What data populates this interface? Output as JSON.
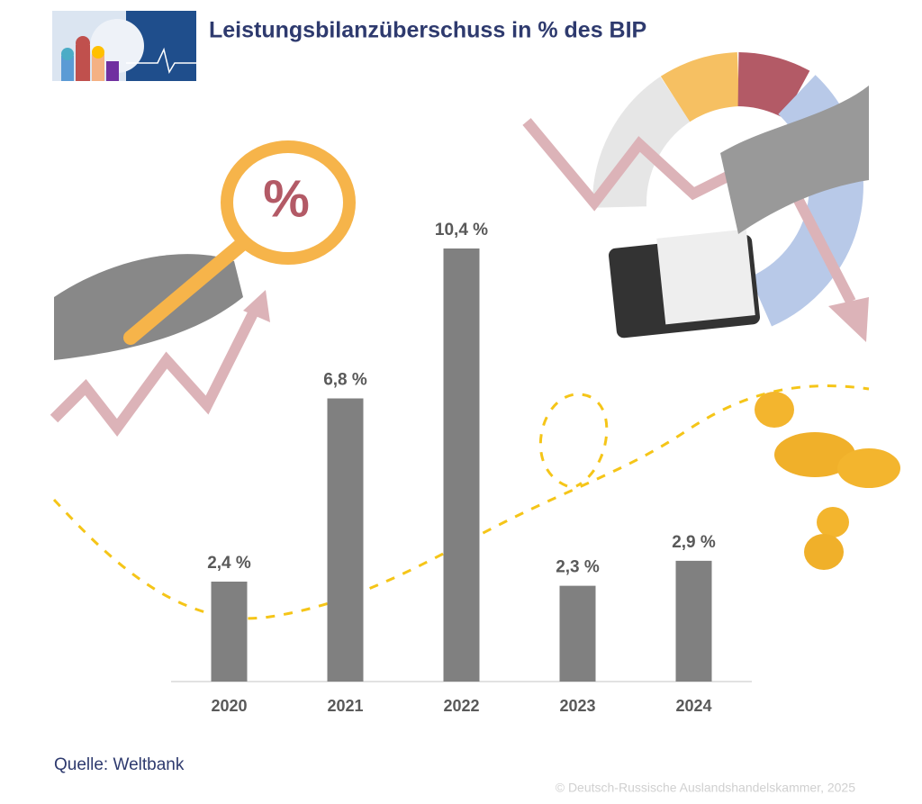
{
  "chart_data": {
    "type": "bar",
    "title": "Leistungsbilanzüberschuss in % des BIP",
    "categories": [
      "2020",
      "2021",
      "2022",
      "2023",
      "2024"
    ],
    "values": [
      2.4,
      6.8,
      10.4,
      2.3,
      2.9
    ],
    "value_labels": [
      "2,4 %",
      "6,8 %",
      "10,4 %",
      "2,3 %",
      "2,9 %"
    ],
    "color": "#808080",
    "source": "Quelle: Weltbank",
    "copyright": "© Deutsch-Russische Auslandshandelskammer, 2025"
  }
}
